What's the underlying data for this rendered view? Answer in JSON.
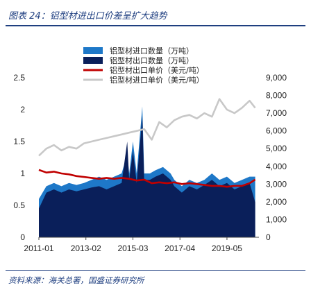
{
  "title": "图表 24：铝型材进出口价差呈扩大趋势",
  "source": "资料来源：海关总署，国盛证券研究所",
  "chart_data": {
    "type": "area",
    "x_tick_labels": [
      "2011-01",
      "2013-02",
      "2015-03",
      "2017-04",
      "2019-05"
    ],
    "y_left_ticks": [
      "0",
      "0.5",
      "1",
      "1.5",
      "2",
      "2.5"
    ],
    "y_right_ticks": [
      "0",
      "1,000",
      "2,000",
      "3,000",
      "4,000",
      "5,000",
      "6,000",
      "7,000",
      "8,000",
      "9,000"
    ],
    "ylim_left": [
      0,
      2.5
    ],
    "ylim_right": [
      0,
      9000
    ],
    "legend_position": "top",
    "series": [
      {
        "name": "铝型材进口数量（万吨）",
        "type": "area",
        "axis": "left",
        "color": "#1e78c8",
        "points": [
          [
            "2011-01",
            0.6
          ],
          [
            "2011-05",
            0.8
          ],
          [
            "2011-09",
            0.85
          ],
          [
            "2012-01",
            0.8
          ],
          [
            "2012-05",
            0.85
          ],
          [
            "2012-09",
            0.82
          ],
          [
            "2013-01",
            0.85
          ],
          [
            "2013-05",
            0.9
          ],
          [
            "2013-09",
            0.95
          ],
          [
            "2014-01",
            0.9
          ],
          [
            "2014-05",
            0.95
          ],
          [
            "2014-09",
            1.0
          ],
          [
            "2014-12",
            1.3
          ],
          [
            "2015-01",
            1.0
          ],
          [
            "2015-03",
            1.5
          ],
          [
            "2015-05",
            1.0
          ],
          [
            "2015-08",
            2.05
          ],
          [
            "2015-09",
            1.0
          ],
          [
            "2015-12",
            1.0
          ],
          [
            "2016-03",
            1.05
          ],
          [
            "2016-07",
            1.1
          ],
          [
            "2016-11",
            1.0
          ],
          [
            "2017-01",
            0.9
          ],
          [
            "2017-05",
            0.8
          ],
          [
            "2017-09",
            0.9
          ],
          [
            "2018-01",
            0.85
          ],
          [
            "2018-05",
            0.9
          ],
          [
            "2018-09",
            1.0
          ],
          [
            "2019-01",
            0.9
          ],
          [
            "2019-05",
            0.95
          ],
          [
            "2019-09",
            0.85
          ],
          [
            "2020-01",
            0.9
          ],
          [
            "2020-05",
            0.95
          ],
          [
            "2020-08",
            0.95
          ]
        ]
      },
      {
        "name": "铝型材出口数量（万吨）",
        "type": "area",
        "axis": "left",
        "color": "#0a1f5a",
        "points": [
          [
            "2011-01",
            0.45
          ],
          [
            "2011-05",
            0.7
          ],
          [
            "2011-09",
            0.75
          ],
          [
            "2012-01",
            0.7
          ],
          [
            "2012-05",
            0.75
          ],
          [
            "2012-09",
            0.72
          ],
          [
            "2013-01",
            0.75
          ],
          [
            "2013-05",
            0.78
          ],
          [
            "2013-09",
            0.8
          ],
          [
            "2014-01",
            0.75
          ],
          [
            "2014-05",
            0.8
          ],
          [
            "2014-09",
            0.85
          ],
          [
            "2014-12",
            1.5
          ],
          [
            "2015-01",
            0.9
          ],
          [
            "2015-03",
            1.35
          ],
          [
            "2015-05",
            0.85
          ],
          [
            "2015-08",
            1.9
          ],
          [
            "2015-09",
            0.9
          ],
          [
            "2015-12",
            0.9
          ],
          [
            "2016-03",
            0.95
          ],
          [
            "2016-07",
            1.0
          ],
          [
            "2016-11",
            0.9
          ],
          [
            "2017-01",
            0.8
          ],
          [
            "2017-05",
            0.7
          ],
          [
            "2017-09",
            0.8
          ],
          [
            "2018-01",
            0.75
          ],
          [
            "2018-05",
            0.82
          ],
          [
            "2018-09",
            0.9
          ],
          [
            "2019-01",
            0.8
          ],
          [
            "2019-05",
            0.85
          ],
          [
            "2019-09",
            0.75
          ],
          [
            "2020-01",
            0.8
          ],
          [
            "2020-05",
            0.85
          ],
          [
            "2020-08",
            0.55
          ]
        ]
      },
      {
        "name": "铝型材出口单价（美元/吨）",
        "type": "line",
        "axis": "right",
        "color": "#c00000",
        "points": [
          [
            "2011-01",
            3800
          ],
          [
            "2011-05",
            3650
          ],
          [
            "2011-09",
            3700
          ],
          [
            "2012-01",
            3600
          ],
          [
            "2012-05",
            3550
          ],
          [
            "2012-09",
            3450
          ],
          [
            "2013-01",
            3400
          ],
          [
            "2013-05",
            3350
          ],
          [
            "2013-09",
            3300
          ],
          [
            "2014-01",
            3350
          ],
          [
            "2014-05",
            3300
          ],
          [
            "2014-09",
            3350
          ],
          [
            "2015-01",
            3300
          ],
          [
            "2015-05",
            3200
          ],
          [
            "2015-09",
            3250
          ],
          [
            "2016-01",
            3050
          ],
          [
            "2016-05",
            3100
          ],
          [
            "2016-09",
            3050
          ],
          [
            "2017-01",
            3100
          ],
          [
            "2017-05",
            3000
          ],
          [
            "2017-09",
            3050
          ],
          [
            "2018-01",
            3000
          ],
          [
            "2018-05",
            2950
          ],
          [
            "2018-09",
            2900
          ],
          [
            "2019-01",
            2900
          ],
          [
            "2019-05",
            2850
          ],
          [
            "2019-09",
            2900
          ],
          [
            "2020-01",
            2900
          ],
          [
            "2020-05",
            3050
          ],
          [
            "2020-08",
            3250
          ]
        ]
      },
      {
        "name": "铝型材进口单价（美元/吨）",
        "type": "line",
        "axis": "right",
        "color": "#c8c8c8",
        "points": [
          [
            "2011-01",
            4600
          ],
          [
            "2011-05",
            5000
          ],
          [
            "2011-09",
            5200
          ],
          [
            "2012-01",
            4900
          ],
          [
            "2012-05",
            5100
          ],
          [
            "2012-09",
            5000
          ],
          [
            "2013-01",
            5300
          ],
          [
            "2013-05",
            5400
          ],
          [
            "2013-09",
            5500
          ],
          [
            "2014-01",
            5600
          ],
          [
            "2014-05",
            5700
          ],
          [
            "2014-09",
            5800
          ],
          [
            "2015-01",
            5900
          ],
          [
            "2015-05",
            6000
          ],
          [
            "2015-09",
            6100
          ],
          [
            "2016-01",
            5500
          ],
          [
            "2016-05",
            6500
          ],
          [
            "2016-09",
            6200
          ],
          [
            "2017-01",
            6600
          ],
          [
            "2017-05",
            6800
          ],
          [
            "2017-09",
            6900
          ],
          [
            "2018-01",
            6700
          ],
          [
            "2018-05",
            7000
          ],
          [
            "2018-09",
            6800
          ],
          [
            "2019-01",
            7800
          ],
          [
            "2019-05",
            7200
          ],
          [
            "2019-09",
            7000
          ],
          [
            "2020-01",
            7300
          ],
          [
            "2020-05",
            7700
          ],
          [
            "2020-08",
            7300
          ]
        ]
      }
    ]
  }
}
